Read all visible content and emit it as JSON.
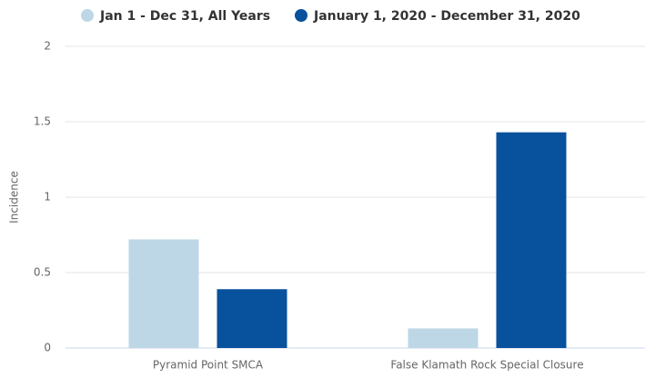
{
  "chart_data": {
    "type": "bar",
    "categories": [
      "Pyramid Point SMCA",
      "False Klamath Rock Special Closure"
    ],
    "series": [
      {
        "name": "Jan 1 - Dec 31, All Years",
        "color": "#bdd7e7",
        "values": [
          0.72,
          0.13
        ]
      },
      {
        "name": "January 1, 2020 - December 31, 2020",
        "color": "#08519c",
        "values": [
          0.39,
          1.43
        ]
      }
    ],
    "ylabel": "Incidence",
    "ylim": [
      0,
      2
    ],
    "yticks": [
      0,
      0.5,
      1,
      1.5,
      2
    ],
    "grid": true
  }
}
